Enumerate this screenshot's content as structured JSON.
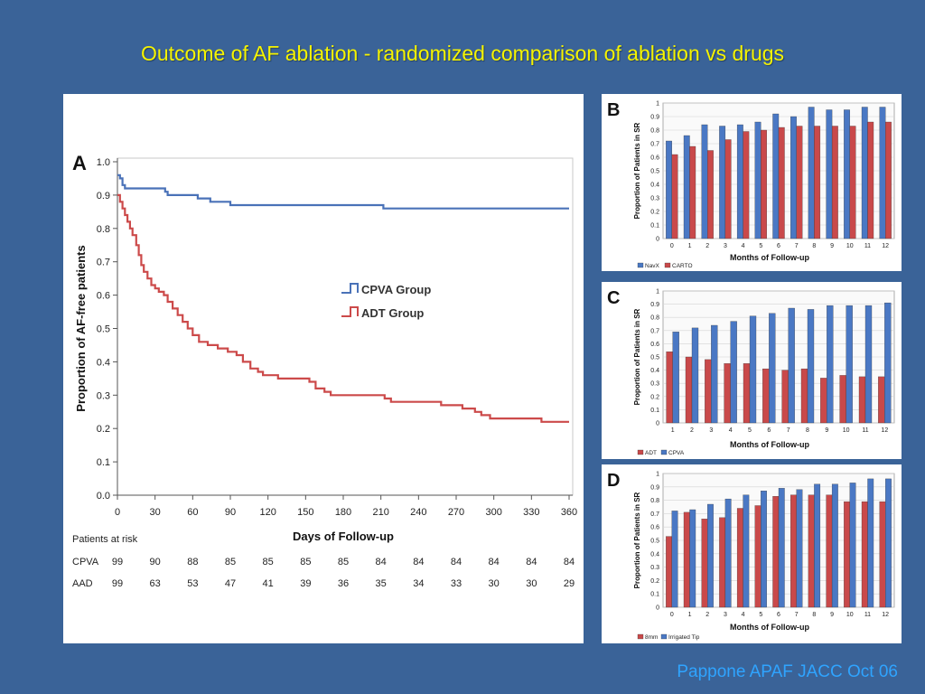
{
  "slide": {
    "title": "Outcome of AF ablation  - randomized comparison of ablation vs drugs",
    "citation": "Pappone APAF JACC Oct 06"
  },
  "colors": {
    "blue": "#4a72b8",
    "red": "#cc4a4a",
    "bar_blue": "#4a78c4",
    "bar_red": "#c9494a"
  },
  "chart_data": [
    {
      "panel": "A",
      "type": "line",
      "xlabel": "Days of Follow-up",
      "ylabel": "Proportion of AF-free patients",
      "x_ticks": [
        0,
        30,
        60,
        90,
        120,
        150,
        180,
        210,
        240,
        270,
        300,
        330,
        360
      ],
      "y_ticks": [
        "0.0",
        "0.1",
        "0.2",
        "0.3",
        "0.4",
        "0.5",
        "0.6",
        "0.7",
        "0.8",
        "0.9",
        "1.0"
      ],
      "xlim": [
        0,
        360
      ],
      "ylim": [
        0,
        1.0
      ],
      "legend_position": "center-right",
      "series": [
        {
          "name": "CPVA Group",
          "color": "#4a72b8",
          "points": [
            [
              0,
              0.96
            ],
            [
              2,
              0.95
            ],
            [
              4,
              0.93
            ],
            [
              6,
              0.92
            ],
            [
              35,
              0.92
            ],
            [
              38,
              0.91
            ],
            [
              40,
              0.9
            ],
            [
              62,
              0.9
            ],
            [
              64,
              0.89
            ],
            [
              72,
              0.89
            ],
            [
              74,
              0.88
            ],
            [
              88,
              0.88
            ],
            [
              90,
              0.87
            ],
            [
              210,
              0.87
            ],
            [
              212,
              0.86
            ],
            [
              360,
              0.86
            ]
          ]
        },
        {
          "name": "ADT Group",
          "color": "#cc4a4a",
          "points": [
            [
              0,
              0.9
            ],
            [
              2,
              0.88
            ],
            [
              4,
              0.86
            ],
            [
              6,
              0.84
            ],
            [
              8,
              0.82
            ],
            [
              10,
              0.8
            ],
            [
              12,
              0.78
            ],
            [
              15,
              0.75
            ],
            [
              17,
              0.72
            ],
            [
              19,
              0.69
            ],
            [
              21,
              0.67
            ],
            [
              24,
              0.65
            ],
            [
              27,
              0.63
            ],
            [
              30,
              0.62
            ],
            [
              33,
              0.61
            ],
            [
              37,
              0.6
            ],
            [
              40,
              0.58
            ],
            [
              44,
              0.56
            ],
            [
              48,
              0.54
            ],
            [
              52,
              0.52
            ],
            [
              56,
              0.5
            ],
            [
              60,
              0.48
            ],
            [
              65,
              0.46
            ],
            [
              72,
              0.45
            ],
            [
              80,
              0.44
            ],
            [
              88,
              0.43
            ],
            [
              95,
              0.42
            ],
            [
              100,
              0.4
            ],
            [
              106,
              0.38
            ],
            [
              112,
              0.37
            ],
            [
              116,
              0.36
            ],
            [
              128,
              0.35
            ],
            [
              150,
              0.35
            ],
            [
              153,
              0.34
            ],
            [
              158,
              0.32
            ],
            [
              165,
              0.31
            ],
            [
              170,
              0.3
            ],
            [
              210,
              0.3
            ],
            [
              213,
              0.29
            ],
            [
              218,
              0.28
            ],
            [
              255,
              0.28
            ],
            [
              258,
              0.27
            ],
            [
              272,
              0.27
            ],
            [
              275,
              0.26
            ],
            [
              285,
              0.25
            ],
            [
              290,
              0.24
            ],
            [
              297,
              0.23
            ],
            [
              335,
              0.23
            ],
            [
              338,
              0.22
            ],
            [
              360,
              0.22
            ]
          ]
        }
      ],
      "risk_table": {
        "heading": "Patients at risk",
        "rows": [
          {
            "label": "CPVA",
            "values": [
              "99",
              "90",
              "88",
              "85",
              "85",
              "85",
              "85",
              "84",
              "84",
              "84",
              "84",
              "84",
              "84"
            ]
          },
          {
            "label": "AAD",
            "values": [
              "99",
              "63",
              "53",
              "47",
              "41",
              "39",
              "36",
              "35",
              "34",
              "33",
              "30",
              "30",
              "29"
            ]
          }
        ]
      }
    },
    {
      "panel": "B",
      "type": "bar",
      "xlabel": "Months of Follow-up",
      "ylabel": "Proportion of Patients in SR",
      "categories": [
        "0",
        "1",
        "2",
        "3",
        "4",
        "5",
        "6",
        "7",
        "8",
        "9",
        "10",
        "11",
        "12"
      ],
      "y_ticks": [
        "0",
        "0.1",
        "0.2",
        "0.3",
        "0.4",
        "0.5",
        "0.6",
        "0.7",
        "0.8",
        "0.9",
        "1"
      ],
      "ylim": [
        0,
        1
      ],
      "series": [
        {
          "name": "NavX",
          "color": "#4a78c4",
          "values": [
            0.72,
            0.76,
            0.84,
            0.83,
            0.84,
            0.86,
            0.92,
            0.9,
            0.97,
            0.95,
            0.95,
            0.97,
            0.97
          ]
        },
        {
          "name": "CARTO",
          "color": "#c9494a",
          "values": [
            0.62,
            0.68,
            0.65,
            0.73,
            0.79,
            0.8,
            0.82,
            0.83,
            0.83,
            0.83,
            0.83,
            0.86,
            0.86
          ]
        }
      ],
      "bar_order": [
        "NavX",
        "CARTO"
      ]
    },
    {
      "panel": "C",
      "type": "bar",
      "xlabel": "Months of Follow-up",
      "ylabel": "Proportion of Patients in SR",
      "categories": [
        "1",
        "2",
        "3",
        "4",
        "5",
        "6",
        "7",
        "8",
        "9",
        "10",
        "11",
        "12"
      ],
      "y_ticks": [
        "0",
        "0.1",
        "0.2",
        "0.3",
        "0.4",
        "0.5",
        "0.6",
        "0.7",
        "0.8",
        "0.9",
        "1"
      ],
      "ylim": [
        0,
        1
      ],
      "series": [
        {
          "name": "ADT",
          "color": "#c9494a",
          "values": [
            0.54,
            0.5,
            0.48,
            0.45,
            0.45,
            0.41,
            0.4,
            0.41,
            0.34,
            0.36,
            0.35,
            0.35
          ]
        },
        {
          "name": "CPVA",
          "color": "#4a78c4",
          "values": [
            0.69,
            0.72,
            0.74,
            0.77,
            0.81,
            0.83,
            0.87,
            0.86,
            0.89,
            0.89,
            0.89,
            0.91
          ]
        }
      ],
      "bar_order": [
        "ADT",
        "CPVA"
      ]
    },
    {
      "panel": "D",
      "type": "bar",
      "xlabel": "Months of Follow-up",
      "ylabel": "Proportion of Patients in SR",
      "categories": [
        "0",
        "1",
        "2",
        "3",
        "4",
        "5",
        "6",
        "7",
        "8",
        "9",
        "10",
        "11",
        "12"
      ],
      "y_ticks": [
        "0",
        "0.1",
        "0.2",
        "0.3",
        "0.4",
        "0.5",
        "0.6",
        "0.7",
        "0.8",
        "0.9",
        "1"
      ],
      "ylim": [
        0,
        1
      ],
      "series": [
        {
          "name": "8mm",
          "color": "#c9494a",
          "values": [
            0.53,
            0.71,
            0.66,
            0.67,
            0.74,
            0.76,
            0.83,
            0.84,
            0.84,
            0.84,
            0.79,
            0.79,
            0.79
          ]
        },
        {
          "name": "Irrigated Tip",
          "color": "#4a78c4",
          "values": [
            0.72,
            0.73,
            0.77,
            0.81,
            0.84,
            0.87,
            0.89,
            0.88,
            0.92,
            0.92,
            0.93,
            0.96,
            0.96
          ]
        }
      ],
      "bar_order": [
        "8mm",
        "Irrigated Tip"
      ]
    }
  ]
}
